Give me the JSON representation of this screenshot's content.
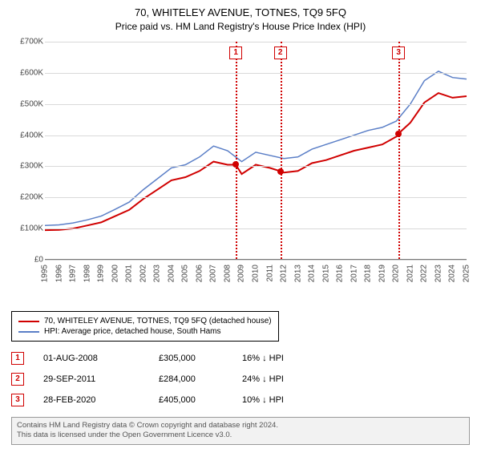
{
  "title1": "70, WHITELEY AVENUE, TOTNES, TQ9 5FQ",
  "title2": "Price paid vs. HM Land Registry's House Price Index (HPI)",
  "chart": {
    "background_color": "#ffffff",
    "grid_color": "#d9d9d9",
    "axis_color": "#777777",
    "ylim": [
      0,
      700000
    ],
    "ytick_step": 100000,
    "yticks": [
      "£0",
      "£100K",
      "£200K",
      "£300K",
      "£400K",
      "£500K",
      "£600K",
      "£700K"
    ],
    "xlim": [
      1995,
      2025
    ],
    "xticks": [
      1995,
      1996,
      1997,
      1998,
      1999,
      2000,
      2001,
      2002,
      2003,
      2004,
      2005,
      2006,
      2007,
      2008,
      2009,
      2010,
      2011,
      2012,
      2013,
      2014,
      2015,
      2016,
      2017,
      2018,
      2019,
      2020,
      2021,
      2022,
      2023,
      2024,
      2025
    ],
    "series": [
      {
        "name": "70, WHITELEY AVENUE, TOTNES, TQ9 5FQ (detached house)",
        "color": "#d00000",
        "width": 2,
        "points": [
          [
            1995,
            95000
          ],
          [
            1996,
            96000
          ],
          [
            1997,
            100000
          ],
          [
            1998,
            110000
          ],
          [
            1999,
            120000
          ],
          [
            2000,
            140000
          ],
          [
            2001,
            160000
          ],
          [
            2002,
            195000
          ],
          [
            2003,
            225000
          ],
          [
            2004,
            255000
          ],
          [
            2005,
            265000
          ],
          [
            2006,
            285000
          ],
          [
            2007,
            315000
          ],
          [
            2008,
            305000
          ],
          [
            2008.58,
            305000
          ],
          [
            2009,
            275000
          ],
          [
            2010,
            305000
          ],
          [
            2011,
            295000
          ],
          [
            2011.75,
            284000
          ],
          [
            2012,
            280000
          ],
          [
            2013,
            285000
          ],
          [
            2014,
            310000
          ],
          [
            2015,
            320000
          ],
          [
            2016,
            335000
          ],
          [
            2017,
            350000
          ],
          [
            2018,
            360000
          ],
          [
            2019,
            370000
          ],
          [
            2020,
            395000
          ],
          [
            2020.16,
            405000
          ],
          [
            2021,
            440000
          ],
          [
            2022,
            505000
          ],
          [
            2023,
            535000
          ],
          [
            2024,
            520000
          ],
          [
            2025,
            525000
          ]
        ]
      },
      {
        "name": "HPI: Average price, detached house, South Hams",
        "color": "#5b7fc7",
        "width": 1.5,
        "points": [
          [
            1995,
            110000
          ],
          [
            1996,
            112000
          ],
          [
            1997,
            118000
          ],
          [
            1998,
            128000
          ],
          [
            1999,
            140000
          ],
          [
            2000,
            162000
          ],
          [
            2001,
            185000
          ],
          [
            2002,
            225000
          ],
          [
            2003,
            260000
          ],
          [
            2004,
            295000
          ],
          [
            2005,
            305000
          ],
          [
            2006,
            330000
          ],
          [
            2007,
            365000
          ],
          [
            2008,
            350000
          ],
          [
            2009,
            315000
          ],
          [
            2010,
            345000
          ],
          [
            2011,
            335000
          ],
          [
            2012,
            325000
          ],
          [
            2013,
            330000
          ],
          [
            2014,
            355000
          ],
          [
            2015,
            370000
          ],
          [
            2016,
            385000
          ],
          [
            2017,
            400000
          ],
          [
            2018,
            415000
          ],
          [
            2019,
            425000
          ],
          [
            2020,
            445000
          ],
          [
            2021,
            500000
          ],
          [
            2022,
            575000
          ],
          [
            2023,
            605000
          ],
          [
            2024,
            585000
          ],
          [
            2025,
            580000
          ]
        ]
      }
    ],
    "markers": [
      {
        "n": "1",
        "x": 2008.58,
        "y": 305000
      },
      {
        "n": "2",
        "x": 2011.75,
        "y": 284000
      },
      {
        "n": "3",
        "x": 2020.16,
        "y": 405000
      }
    ],
    "marker_border_color": "#d00000"
  },
  "legend": [
    {
      "color": "#d00000",
      "label": "70, WHITELEY AVENUE, TOTNES, TQ9 5FQ (detached house)"
    },
    {
      "color": "#5b7fc7",
      "label": "HPI: Average price, detached house, South Hams"
    }
  ],
  "sales": [
    {
      "n": "1",
      "date": "01-AUG-2008",
      "price": "£305,000",
      "hpi": "16% ↓ HPI"
    },
    {
      "n": "2",
      "date": "29-SEP-2011",
      "price": "£284,000",
      "hpi": "24% ↓ HPI"
    },
    {
      "n": "3",
      "date": "28-FEB-2020",
      "price": "£405,000",
      "hpi": "10% ↓ HPI"
    }
  ],
  "footer_line1": "Contains HM Land Registry data © Crown copyright and database right 2024.",
  "footer_line2": "This data is licensed under the Open Government Licence v3.0."
}
